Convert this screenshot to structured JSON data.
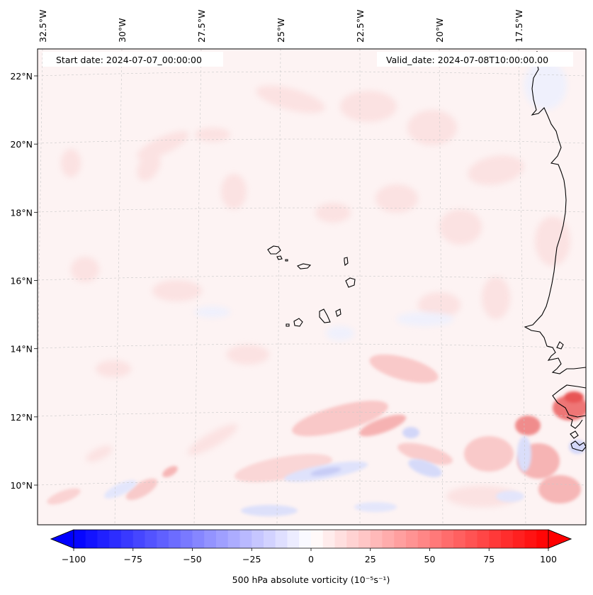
{
  "map": {
    "start_date_text": "Start date: 2024-07-07_00:00:00",
    "valid_date_text": "Valid_date: 2024-07-08T10:00:00.00",
    "field": "500 hPa absolute vorticity",
    "region": "Cape Verde / West African coast"
  },
  "axes": {
    "lon_labels": [
      {
        "value": -32.5,
        "text": "32.5°W"
      },
      {
        "value": -30.0,
        "text": "30°W"
      },
      {
        "value": -27.5,
        "text": "27.5°W"
      },
      {
        "value": -25.0,
        "text": "25°W"
      },
      {
        "value": -22.5,
        "text": "22.5°W"
      },
      {
        "value": -20.0,
        "text": "20°W"
      },
      {
        "value": -17.5,
        "text": "17.5°W"
      }
    ],
    "lat_labels": [
      {
        "value": 22,
        "text": "22°N"
      },
      {
        "value": 20,
        "text": "20°N"
      },
      {
        "value": 18,
        "text": "18°N"
      },
      {
        "value": 16,
        "text": "16°N"
      },
      {
        "value": 14,
        "text": "14°N"
      },
      {
        "value": 12,
        "text": "12°N"
      },
      {
        "value": 10,
        "text": "10°N"
      }
    ]
  },
  "colorbar": {
    "label": "500 hPa absolute vorticity (10⁻⁵s⁻¹)",
    "min": -100,
    "max": 100,
    "levels_step": 5,
    "ticks": [
      {
        "value": -100,
        "text": "−100"
      },
      {
        "value": -75,
        "text": "−75"
      },
      {
        "value": -50,
        "text": "−50"
      },
      {
        "value": -25,
        "text": "−25"
      },
      {
        "value": 0,
        "text": "0"
      },
      {
        "value": 25,
        "text": "25"
      },
      {
        "value": 50,
        "text": "50"
      },
      {
        "value": 75,
        "text": "75"
      },
      {
        "value": 100,
        "text": "100"
      }
    ],
    "color_low": "#0000ff",
    "color_mid": "#ffffff",
    "color_high": "#ff0000"
  }
}
